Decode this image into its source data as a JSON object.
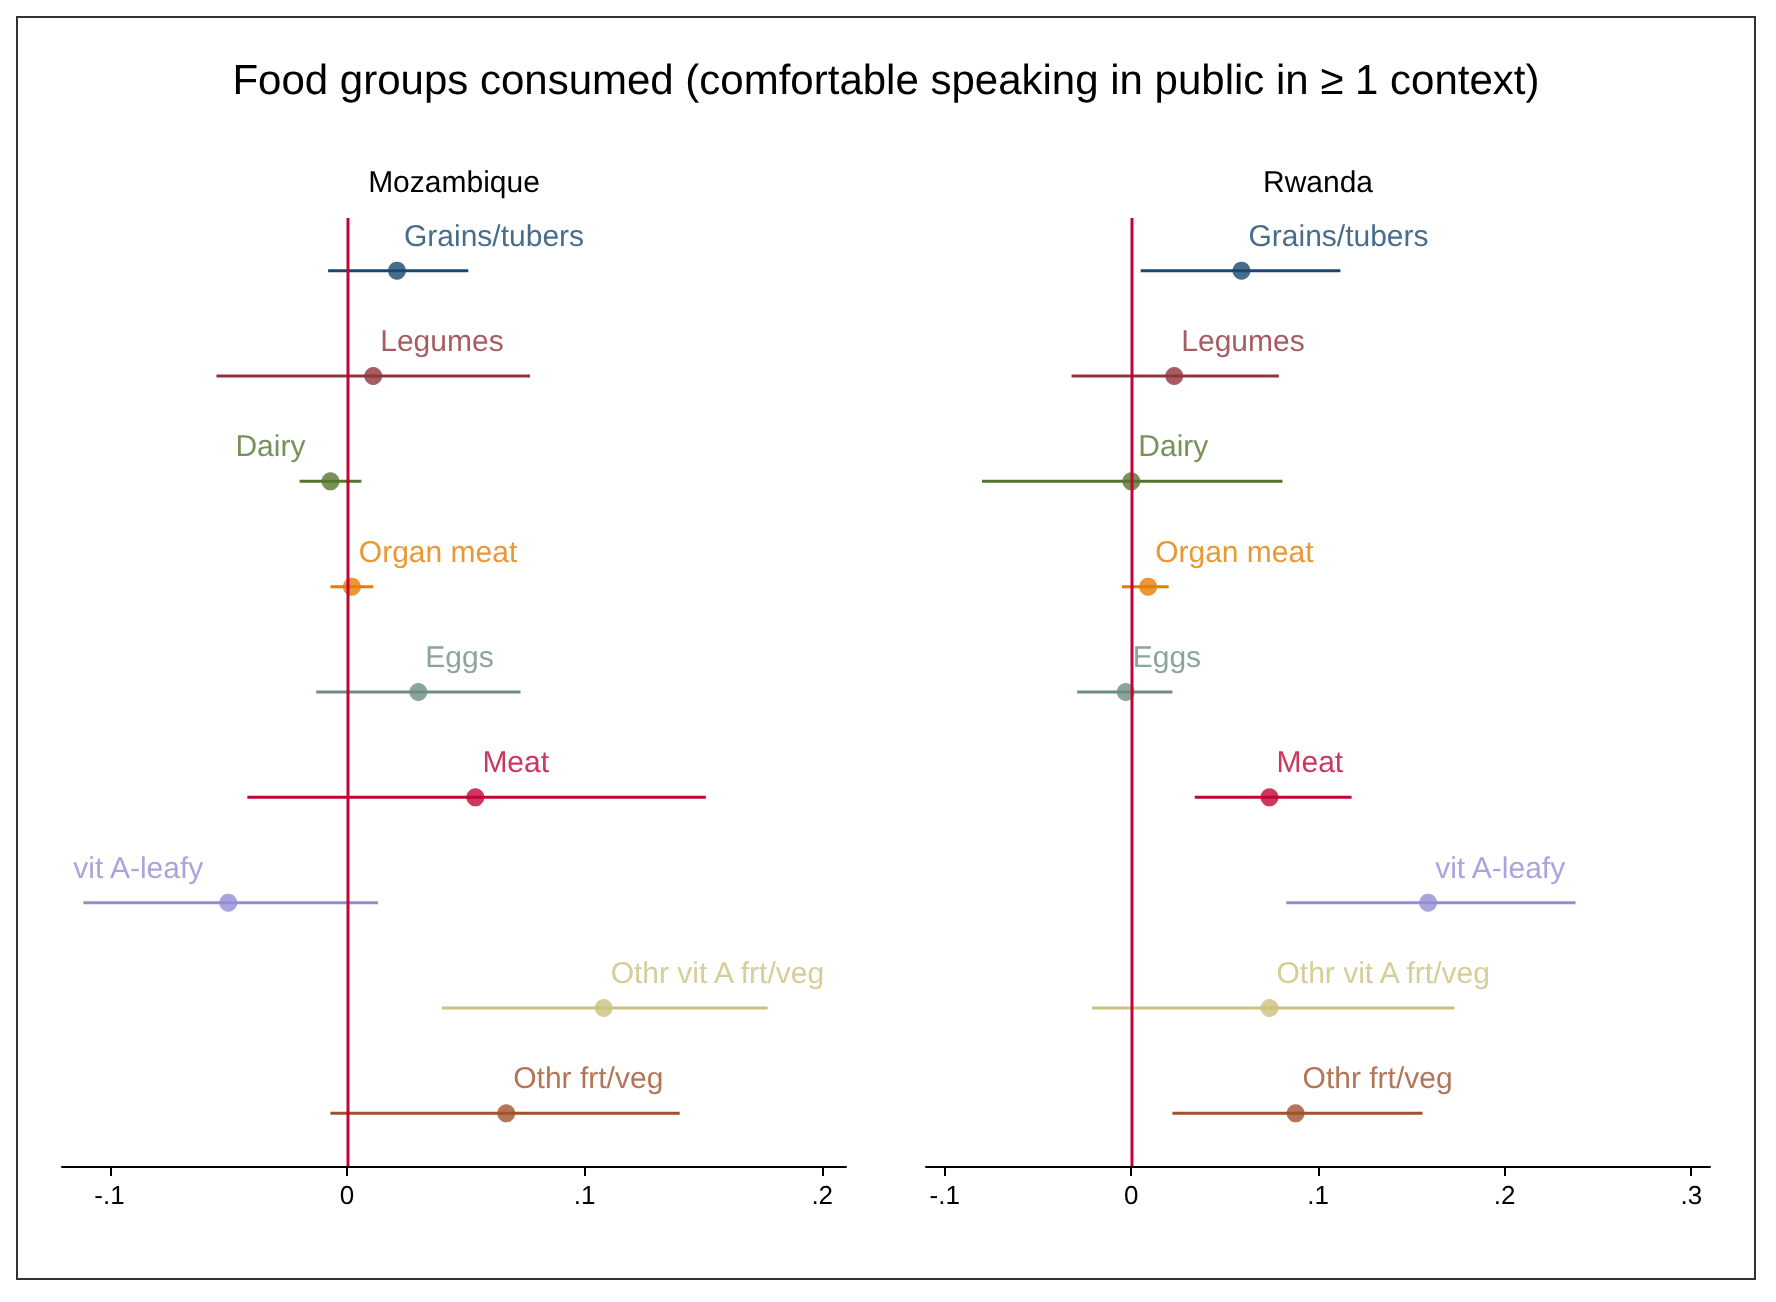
{
  "chart_data": [
    {
      "type": "scatter",
      "orientation": "horizontal",
      "title": "Mozambique",
      "annotations": [
        "Food groups consumed (comfortable speaking in public in ≥ 1 context)"
      ],
      "categories": [
        "Grains/tubers",
        "Legumes",
        "Dairy",
        "Organ meat",
        "Eggs",
        "Meat",
        "vit A-leafy",
        "Othr vit A frt/veg",
        "Othr frt/veg"
      ],
      "values": [
        0.021,
        0.011,
        -0.007,
        0.002,
        0.03,
        0.054,
        -0.05,
        0.108,
        0.067
      ],
      "errors": [
        [
          -0.008,
          0.051
        ],
        [
          -0.055,
          0.077
        ],
        [
          -0.02,
          0.006
        ],
        [
          -0.007,
          0.011
        ],
        [
          -0.013,
          0.073
        ],
        [
          -0.042,
          0.151
        ],
        [
          -0.111,
          0.013
        ],
        [
          0.04,
          0.177
        ],
        [
          -0.007,
          0.14
        ]
      ],
      "colors": [
        "#1a476f",
        "#90353b",
        "#55752f",
        "#e37e00",
        "#6e8e84",
        "#c10534",
        "#938dd2",
        "#cac27e",
        "#a0522d"
      ],
      "xlim": [
        -0.12,
        0.21
      ],
      "xticks": [
        {
          "value": -0.1,
          "label": "-.1"
        },
        {
          "value": 0,
          "label": "0"
        },
        {
          "value": 0.1,
          "label": ".1"
        },
        {
          "value": 0.2,
          "label": ".2"
        }
      ],
      "ref_lines": [
        {
          "axis": "x",
          "value": 0,
          "color": "#c10534"
        }
      ],
      "tick_labels": "x",
      "grid": false,
      "marker": "circle"
    },
    {
      "type": "scatter",
      "orientation": "horizontal",
      "title": "Rwanda",
      "categories": [
        "Grains/tubers",
        "Legumes",
        "Dairy",
        "Organ meat",
        "Eggs",
        "Meat",
        "vit A-leafy",
        "Othr vit A frt/veg",
        "Othr frt/veg"
      ],
      "values": [
        0.059,
        0.023,
        0.0,
        0.009,
        -0.003,
        0.074,
        0.159,
        0.074,
        0.088
      ],
      "errors": [
        [
          0.005,
          0.112
        ],
        [
          -0.032,
          0.079
        ],
        [
          -0.08,
          0.081
        ],
        [
          -0.005,
          0.02
        ],
        [
          -0.029,
          0.022
        ],
        [
          0.034,
          0.118
        ],
        [
          0.083,
          0.238
        ],
        [
          -0.021,
          0.173
        ],
        [
          0.022,
          0.156
        ]
      ],
      "colors": [
        "#1a476f",
        "#90353b",
        "#55752f",
        "#e37e00",
        "#6e8e84",
        "#c10534",
        "#938dd2",
        "#cac27e",
        "#a0522d"
      ],
      "xlim": [
        -0.11,
        0.31
      ],
      "xticks": [
        {
          "value": -0.1,
          "label": "-.1"
        },
        {
          "value": 0,
          "label": "0"
        },
        {
          "value": 0.1,
          "label": ".1"
        },
        {
          "value": 0.2,
          "label": ".2"
        },
        {
          "value": 0.3,
          "label": ".3"
        }
      ],
      "ref_lines": [
        {
          "axis": "x",
          "value": 0,
          "color": "#c10534"
        }
      ],
      "tick_labels": "x",
      "grid": false,
      "marker": "circle"
    }
  ]
}
